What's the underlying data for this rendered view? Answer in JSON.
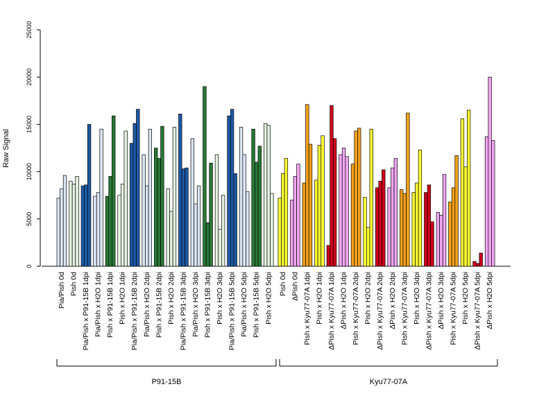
{
  "chart_data": {
    "type": "bar",
    "ylabel": "Raw Signal",
    "ylim": [
      0,
      25000
    ],
    "yticks": [
      0,
      5000,
      10000,
      15000,
      20000,
      25000
    ],
    "grid": false,
    "legend": "none",
    "categories": [
      "Pia/Pish 0d",
      "Pish 0d",
      "Pia/Pish x P91-15B 1dpi",
      "Pia/Pish x H2O 1dpi",
      "Pish x P91-15B 1dpi",
      "Pish x H2O 1dpi",
      "Pia/Pish x P91-15B 2dpi",
      "Pia/Pish x H2O 2dpi",
      "Pish x P91-15B 2dpi",
      "Pish x H2O 2dpi",
      "Pia/Pish x P91-15B 3dpi",
      "Pia/Pish x H2O 3dpi",
      "Pish x P91-15B 3dpi",
      "Pish x H2O 3dpi",
      "Pia/Pish x P91-15B 5dpi",
      "Pia/Pish x H2O 5dpi",
      "Pish x P91-15B 5dpi",
      "Pish x H2O 5dpi",
      "Pish 0d",
      "ΔPish 0d",
      "Pish x Kyu77-07A 1dpi",
      "Pish x H2O 1dpi",
      "ΔPish x Kyu77-07A 1dpi",
      "ΔPish x H2O 1dpi",
      "Pish x Kyu77-07A 2dpi",
      "Pish x H2O 2dpi",
      "ΔPish x Kyu77-07A 2dpi",
      "ΔPish x H2O 2dpi",
      "Pish x Kyu77-07A 3dpi",
      "Pish x H2O 3dpi",
      "ΔPish x Kyu77-07A 3dpi",
      "ΔPish x H2O 3dpi",
      "Pish x Kyu77-07A 5dpi",
      "Pish x H2O 5dpi",
      "ΔPish x Kyu77-07A 5dpi",
      "ΔPish x H2O 5dpi"
    ],
    "colors": [
      "#dbe6f5",
      "#e5f2e1",
      "#1f5aa6",
      "#dbe6f5",
      "#2a7a36",
      "#e5f2e1",
      "#1f5aa6",
      "#dbe6f5",
      "#2a7a36",
      "#e5f2e1",
      "#1f5aa6",
      "#dbe6f5",
      "#2a7a36",
      "#e5f2e1",
      "#1f5aa6",
      "#dbe6f5",
      "#2a7a36",
      "#e5f2e1",
      "#ffff33",
      "#f2a6f2",
      "#f7a21b",
      "#ffff33",
      "#d0021b",
      "#f2a6f2",
      "#f7a21b",
      "#ffff33",
      "#d0021b",
      "#f2a6f2",
      "#f7a21b",
      "#ffff33",
      "#d0021b",
      "#f2a6f2",
      "#f7a21b",
      "#ffff33",
      "#d0021b",
      "#f2a6f2"
    ],
    "values": [
      [
        7200,
        8200,
        9600
      ],
      [
        9000,
        8700,
        9500
      ],
      [
        8500,
        8600,
        15000
      ],
      [
        7400,
        7800,
        14500
      ],
      [
        7400,
        9500,
        15900
      ],
      [
        7500,
        8700,
        14300
      ],
      [
        13000,
        15100,
        16600
      ],
      [
        11800,
        8500,
        14500
      ],
      [
        12500,
        11400,
        14800
      ],
      [
        8200,
        5800,
        14700
      ],
      [
        16100,
        10300,
        10400
      ],
      [
        13500,
        6600,
        8500
      ],
      [
        19000,
        4600,
        10900
      ],
      [
        11800,
        3900,
        7500
      ],
      [
        15900,
        16600,
        9800
      ],
      [
        14700,
        11800,
        7900
      ],
      [
        14500,
        11000,
        12700
      ],
      [
        15100,
        14900,
        7700
      ],
      [
        7200,
        9800,
        11400
      ],
      [
        7000,
        9500,
        10800
      ],
      [
        8800,
        17100,
        12900
      ],
      [
        9100,
        12800,
        13800
      ],
      [
        2200,
        17000,
        13500
      ],
      [
        11800,
        12500,
        11600
      ],
      [
        10800,
        14300,
        14600
      ],
      [
        7300,
        4100,
        14500
      ],
      [
        8300,
        9000,
        10200
      ],
      [
        8300,
        10400,
        11400
      ],
      [
        8100,
        7700,
        16200
      ],
      [
        7800,
        8800,
        12300
      ],
      [
        7800,
        8600,
        4700
      ],
      [
        5700,
        5400,
        9700
      ],
      [
        6800,
        8300,
        11700
      ],
      [
        15600,
        10500,
        16500
      ],
      [
        500,
        300,
        1400
      ],
      [
        13700,
        20000,
        13300
      ]
    ],
    "groups": [
      {
        "label": "P91-15B",
        "start": 0,
        "end": 17
      },
      {
        "label": "Kyu77-07A",
        "start": 18,
        "end": 35
      }
    ]
  }
}
